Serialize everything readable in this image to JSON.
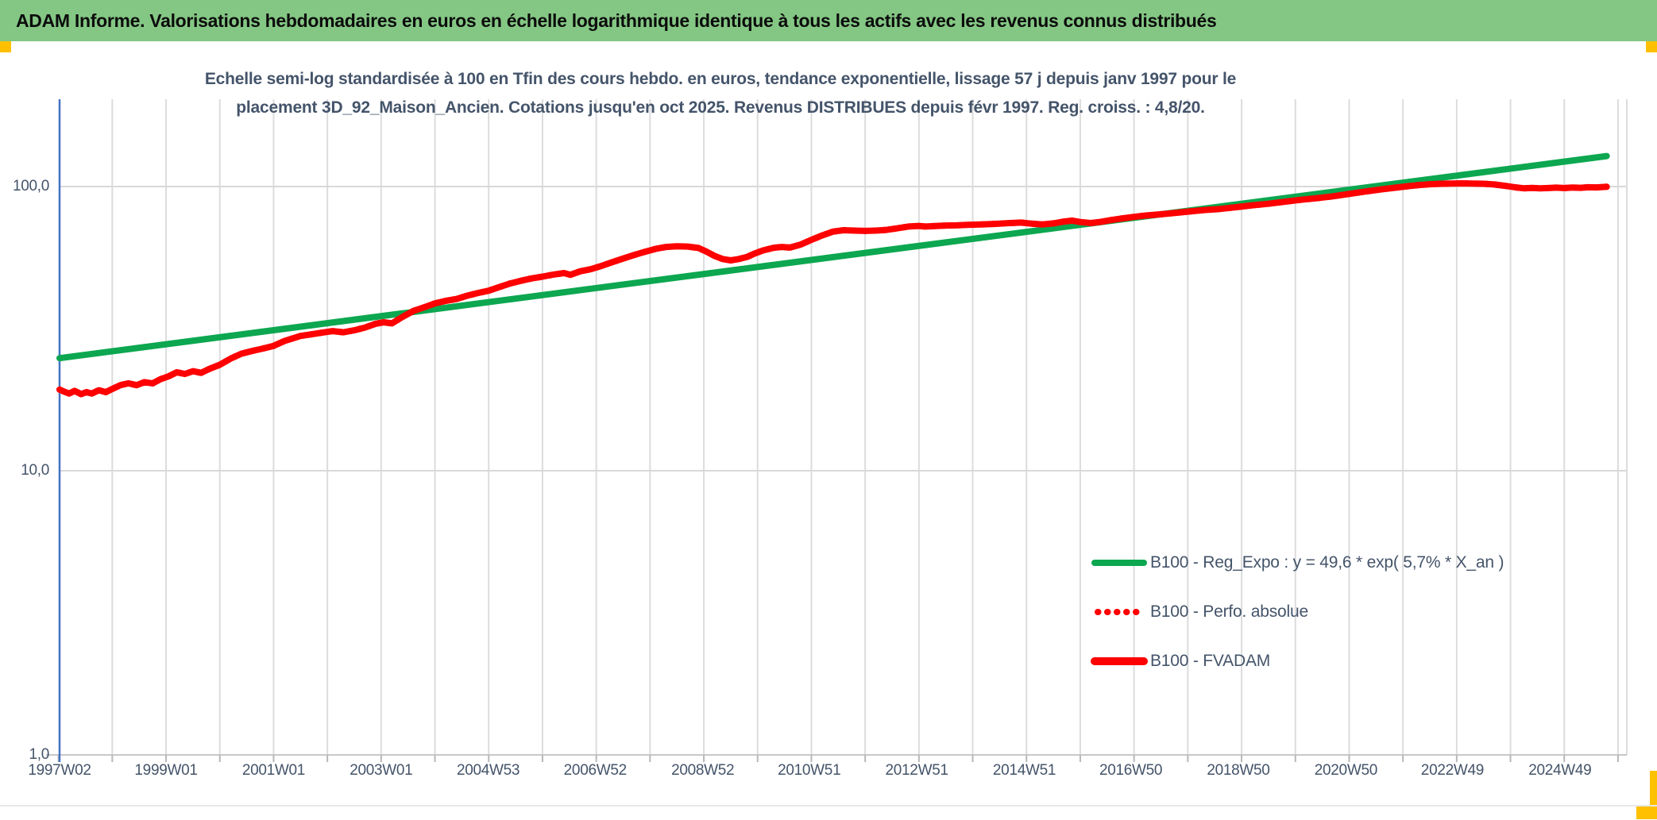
{
  "header": {
    "title": "ADAM Informe. Valorisations hebdomadaires en euros en échelle logarithmique identique à tous les actifs avec les revenus connus distribués"
  },
  "accent_colors": {
    "header_green": "#84C784",
    "corner_gold": "#FFC000",
    "axis_blue": "#4472C4",
    "text_blue_gray": "#44546A"
  },
  "chart_data": {
    "type": "line",
    "title_line1": "Echelle semi-log standardisée à 100 en Tfin des cours hebdo. en euros, tendance exponentielle, lissage 57 j depuis janv 1997 pour le",
    "title_line2": "placement 3D_92_Maison_Ancien. Cotations jusqu'en oct 2025. Revenus DISTRIBUES depuis févr 1997. Reg. croiss. : 4,8/20.",
    "xlabel": "",
    "ylabel": "",
    "y_scale": "log10",
    "ylim": [
      1,
      200
    ],
    "grid": true,
    "legend_position": "lower right",
    "y_ticks": [
      {
        "label": "100,0",
        "value": 100
      },
      {
        "label": "10,0",
        "value": 10
      },
      {
        "label": "1,0",
        "value": 1
      }
    ],
    "x_ticks": [
      {
        "label": "1997W02",
        "t": 1997.02
      },
      {
        "label": "1999W01",
        "t": 1999.0
      },
      {
        "label": "2001W01",
        "t": 2001.0
      },
      {
        "label": "2003W01",
        "t": 2003.0
      },
      {
        "label": "2004W53",
        "t": 2004.99
      },
      {
        "label": "2006W52",
        "t": 2006.98
      },
      {
        "label": "2008W52",
        "t": 2008.98
      },
      {
        "label": "2010W51",
        "t": 2010.96
      },
      {
        "label": "2012W51",
        "t": 2012.96
      },
      {
        "label": "2014W51",
        "t": 2014.96
      },
      {
        "label": "2016W50",
        "t": 2016.94
      },
      {
        "label": "2018W50",
        "t": 2018.94
      },
      {
        "label": "2020W50",
        "t": 2020.94
      },
      {
        "label": "2022W49",
        "t": 2022.92
      },
      {
        "label": "2024W49",
        "t": 2024.92
      }
    ],
    "x_range": [
      1997.02,
      2026.2
    ],
    "series": [
      {
        "name": "B100 - Reg_Expo : y = 49,6 * exp( 5,7% *  X_an )",
        "color": "#0CA750",
        "style": "solid",
        "width": 8,
        "points": [
          [
            1997.02,
            24.9
          ],
          [
            2025.79,
            128
          ]
        ]
      },
      {
        "name": "B100 - Perfo. absolue",
        "color": "#FF0000",
        "style": "dotted",
        "width": 8,
        "points_same_as": "B100 - FVADAM"
      },
      {
        "name": "B100 - FVADAM",
        "color": "#FF0000",
        "style": "solid",
        "width": 8,
        "points": [
          [
            1997.02,
            19.3
          ],
          [
            1997.1,
            19.0
          ],
          [
            1997.2,
            18.7
          ],
          [
            1997.3,
            19.1
          ],
          [
            1997.42,
            18.6
          ],
          [
            1997.52,
            18.9
          ],
          [
            1997.62,
            18.7
          ],
          [
            1997.75,
            19.2
          ],
          [
            1997.88,
            18.9
          ],
          [
            1998.0,
            19.4
          ],
          [
            1998.15,
            20.0
          ],
          [
            1998.3,
            20.3
          ],
          [
            1998.45,
            20.0
          ],
          [
            1998.6,
            20.5
          ],
          [
            1998.75,
            20.3
          ],
          [
            1998.9,
            21.0
          ],
          [
            1999.05,
            21.5
          ],
          [
            1999.2,
            22.2
          ],
          [
            1999.35,
            21.9
          ],
          [
            1999.5,
            22.4
          ],
          [
            1999.65,
            22.1
          ],
          [
            1999.8,
            22.8
          ],
          [
            2000.0,
            23.6
          ],
          [
            2000.2,
            24.8
          ],
          [
            2000.4,
            25.8
          ],
          [
            2000.6,
            26.4
          ],
          [
            2000.8,
            26.9
          ],
          [
            2001.0,
            27.5
          ],
          [
            2001.2,
            28.6
          ],
          [
            2001.35,
            29.2
          ],
          [
            2001.5,
            29.8
          ],
          [
            2001.7,
            30.2
          ],
          [
            2001.9,
            30.6
          ],
          [
            2002.1,
            31.0
          ],
          [
            2002.3,
            30.7
          ],
          [
            2002.5,
            31.2
          ],
          [
            2002.7,
            31.9
          ],
          [
            2002.9,
            32.9
          ],
          [
            2003.05,
            33.3
          ],
          [
            2003.2,
            33.0
          ],
          [
            2003.4,
            34.8
          ],
          [
            2003.6,
            36.5
          ],
          [
            2003.8,
            37.6
          ],
          [
            2004.0,
            38.8
          ],
          [
            2004.2,
            39.6
          ],
          [
            2004.4,
            40.2
          ],
          [
            2004.6,
            41.3
          ],
          [
            2004.8,
            42.2
          ],
          [
            2005.0,
            43.0
          ],
          [
            2005.2,
            44.3
          ],
          [
            2005.4,
            45.6
          ],
          [
            2005.6,
            46.6
          ],
          [
            2005.8,
            47.5
          ],
          [
            2006.0,
            48.2
          ],
          [
            2006.2,
            49.0
          ],
          [
            2006.4,
            49.6
          ],
          [
            2006.52,
            48.9
          ],
          [
            2006.7,
            50.3
          ],
          [
            2006.9,
            51.2
          ],
          [
            2007.1,
            52.6
          ],
          [
            2007.3,
            54.2
          ],
          [
            2007.5,
            55.8
          ],
          [
            2007.7,
            57.4
          ],
          [
            2007.9,
            58.9
          ],
          [
            2008.1,
            60.3
          ],
          [
            2008.3,
            61.3
          ],
          [
            2008.5,
            61.6
          ],
          [
            2008.7,
            61.5
          ],
          [
            2008.9,
            60.8
          ],
          [
            2009.05,
            59.0
          ],
          [
            2009.2,
            57.0
          ],
          [
            2009.35,
            55.6
          ],
          [
            2009.5,
            55.0
          ],
          [
            2009.65,
            55.6
          ],
          [
            2009.8,
            56.5
          ],
          [
            2009.95,
            58.2
          ],
          [
            2010.1,
            59.6
          ],
          [
            2010.3,
            60.9
          ],
          [
            2010.45,
            61.3
          ],
          [
            2010.6,
            61.0
          ],
          [
            2010.8,
            62.5
          ],
          [
            2011.0,
            64.9
          ],
          [
            2011.2,
            67.3
          ],
          [
            2011.4,
            69.4
          ],
          [
            2011.6,
            70.2
          ],
          [
            2011.8,
            70.0
          ],
          [
            2012.0,
            69.8
          ],
          [
            2012.2,
            70.0
          ],
          [
            2012.4,
            70.4
          ],
          [
            2012.6,
            71.3
          ],
          [
            2012.8,
            72.3
          ],
          [
            2013.0,
            72.7
          ],
          [
            2013.12,
            72.3
          ],
          [
            2013.3,
            72.6
          ],
          [
            2013.5,
            72.9
          ],
          [
            2013.7,
            73.0
          ],
          [
            2013.9,
            73.3
          ],
          [
            2014.1,
            73.5
          ],
          [
            2014.3,
            73.7
          ],
          [
            2014.5,
            74.0
          ],
          [
            2014.7,
            74.4
          ],
          [
            2014.9,
            74.7
          ],
          [
            2015.1,
            74.0
          ],
          [
            2015.3,
            73.6
          ],
          [
            2015.5,
            74.2
          ],
          [
            2015.7,
            75.3
          ],
          [
            2015.85,
            75.9
          ],
          [
            2016.0,
            75.0
          ],
          [
            2016.2,
            74.4
          ],
          [
            2016.4,
            75.2
          ],
          [
            2016.6,
            76.4
          ],
          [
            2016.8,
            77.3
          ],
          [
            2017.0,
            78.2
          ],
          [
            2017.2,
            79.0
          ],
          [
            2017.4,
            79.6
          ],
          [
            2017.6,
            80.2
          ],
          [
            2017.8,
            80.9
          ],
          [
            2018.0,
            81.6
          ],
          [
            2018.3,
            82.6
          ],
          [
            2018.6,
            83.4
          ],
          [
            2018.9,
            84.6
          ],
          [
            2019.2,
            85.9
          ],
          [
            2019.5,
            87.0
          ],
          [
            2019.8,
            88.4
          ],
          [
            2020.1,
            89.8
          ],
          [
            2020.4,
            91.0
          ],
          [
            2020.7,
            92.4
          ],
          [
            2021.0,
            94.2
          ],
          [
            2021.3,
            96.0
          ],
          [
            2021.6,
            97.8
          ],
          [
            2021.9,
            99.3
          ],
          [
            2022.1,
            100.3
          ],
          [
            2022.3,
            101.2
          ],
          [
            2022.5,
            101.9
          ],
          [
            2022.7,
            102.3
          ],
          [
            2022.9,
            102.5
          ],
          [
            2023.1,
            102.6
          ],
          [
            2023.3,
            102.4
          ],
          [
            2023.5,
            102.3
          ],
          [
            2023.7,
            101.7
          ],
          [
            2023.9,
            100.6
          ],
          [
            2024.1,
            99.3
          ],
          [
            2024.25,
            98.6
          ],
          [
            2024.4,
            98.9
          ],
          [
            2024.55,
            98.5
          ],
          [
            2024.7,
            98.8
          ],
          [
            2024.85,
            99.1
          ],
          [
            2025.0,
            98.8
          ],
          [
            2025.15,
            99.2
          ],
          [
            2025.3,
            99.0
          ],
          [
            2025.45,
            99.4
          ],
          [
            2025.6,
            99.3
          ],
          [
            2025.79,
            99.8
          ]
        ]
      }
    ],
    "legend": [
      {
        "label": "B100 - Reg_Expo : y = 49,6 * exp( 5,7% *  X_an )",
        "color": "#0CA750",
        "style": "solid"
      },
      {
        "label": "B100 - Perfo. absolue",
        "color": "#FF0000",
        "style": "dotted"
      },
      {
        "label": "B100 - FVADAM",
        "color": "#FF0000",
        "style": "solid"
      }
    ]
  }
}
